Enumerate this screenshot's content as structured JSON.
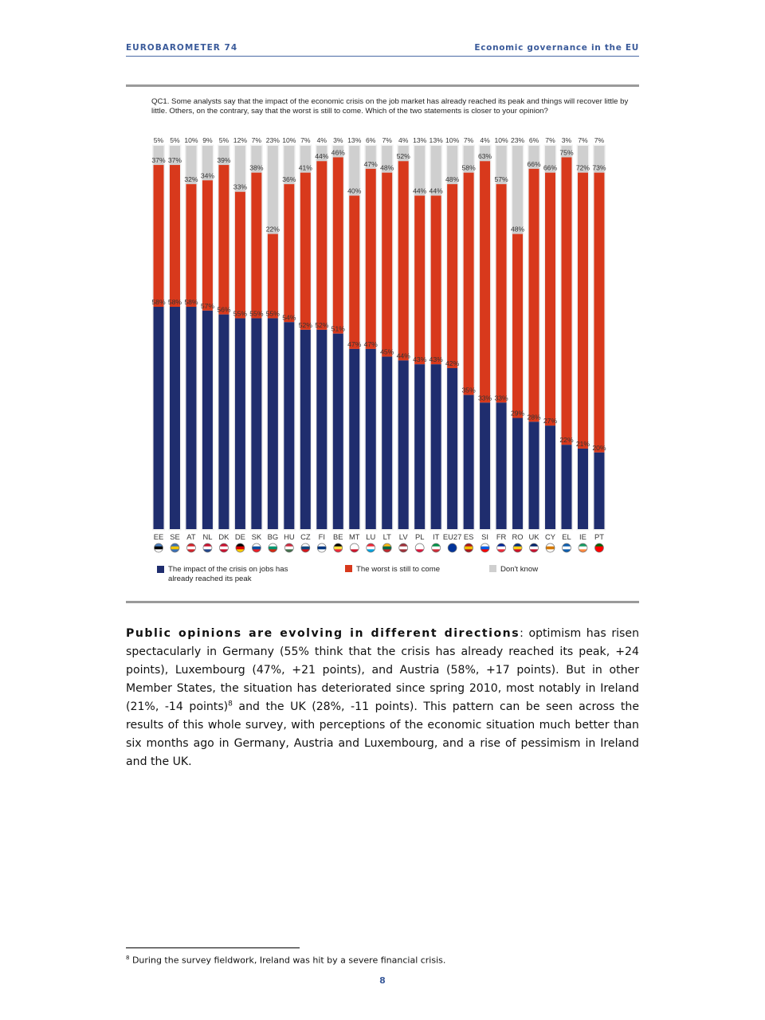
{
  "header": {
    "left": "EUROBAROMETER 74",
    "right": "Economic governance in the EU"
  },
  "question": "QC1. Some analysts say that the impact of the economic crisis on the job market has already reached its peak and things will recover little by little. Others, on the contrary, say that the worst is still to come. Which of the two statements is closer to your opinion?",
  "colors": {
    "peak": "#1f2d6e",
    "worst": "#d8391c",
    "dontknow": "#cfcfcf"
  },
  "chart_data": {
    "type": "bar",
    "stacked": true,
    "categories": [
      "EE",
      "SE",
      "AT",
      "NL",
      "DK",
      "DE",
      "SK",
      "BG",
      "HU",
      "CZ",
      "FI",
      "BE",
      "MT",
      "LU",
      "LT",
      "LV",
      "PL",
      "IT",
      "EU27",
      "ES",
      "SI",
      "FR",
      "RO",
      "UK",
      "CY",
      "EL",
      "IE",
      "PT"
    ],
    "series": [
      {
        "name": "The impact of the crisis on jobs has already reached its peak",
        "values": [
          58,
          58,
          58,
          57,
          56,
          55,
          55,
          55,
          54,
          52,
          52,
          51,
          47,
          47,
          45,
          44,
          43,
          43,
          42,
          35,
          33,
          33,
          29,
          28,
          27,
          22,
          21,
          20
        ]
      },
      {
        "name": "The worst is still to come",
        "values": [
          37,
          37,
          32,
          34,
          39,
          33,
          38,
          22,
          36,
          41,
          44,
          46,
          40,
          47,
          48,
          52,
          44,
          44,
          48,
          58,
          63,
          57,
          48,
          66,
          66,
          75,
          72,
          73
        ]
      },
      {
        "name": "Don't know",
        "values": [
          5,
          5,
          10,
          9,
          5,
          12,
          7,
          23,
          10,
          7,
          4,
          3,
          13,
          6,
          7,
          4,
          13,
          13,
          10,
          7,
          4,
          10,
          23,
          6,
          7,
          3,
          7,
          7
        ]
      }
    ],
    "ylim": [
      0,
      100
    ],
    "value_labels": "percent",
    "legend_position": "bottom"
  },
  "legend": [
    {
      "label": "The impact of the crisis on jobs has already reached its peak",
      "color": "#1f2d6e"
    },
    {
      "label": "The worst is still to come",
      "color": "#d8391c"
    },
    {
      "label": "Don't know",
      "color": "#cfcfcf"
    }
  ],
  "flags": [
    [
      "#4a7fc1",
      "#000000",
      "#ffffff"
    ],
    [
      "#3a6fb5",
      "#f2c500",
      "#3a6fb5"
    ],
    [
      "#d2232a",
      "#ffffff",
      "#d2232a"
    ],
    [
      "#c8102e",
      "#ffffff",
      "#21468b"
    ],
    [
      "#c8102e",
      "#ffffff",
      "#c8102e"
    ],
    [
      "#000000",
      "#dd0000",
      "#ffcc00"
    ],
    [
      "#ffffff",
      "#0b4ea2",
      "#ee1c25"
    ],
    [
      "#ffffff",
      "#00966e",
      "#d62612"
    ],
    [
      "#cd2a3e",
      "#ffffff",
      "#436f4d"
    ],
    [
      "#ffffff",
      "#11457e",
      "#d7141a"
    ],
    [
      "#ffffff",
      "#003580",
      "#ffffff"
    ],
    [
      "#000000",
      "#fae042",
      "#ed2939"
    ],
    [
      "#ffffff",
      "#ffffff",
      "#cf142b"
    ],
    [
      "#ed2939",
      "#ffffff",
      "#00a1de"
    ],
    [
      "#fdb913",
      "#006a44",
      "#c1272d"
    ],
    [
      "#9e3039",
      "#ffffff",
      "#9e3039"
    ],
    [
      "#ffffff",
      "#ffffff",
      "#dc143c"
    ],
    [
      "#009246",
      "#ffffff",
      "#ce2b37"
    ],
    [
      "#003399",
      "#003399",
      "#003399"
    ],
    [
      "#aa151b",
      "#f1bf00",
      "#aa151b"
    ],
    [
      "#ffffff",
      "#005ce6",
      "#ff0000"
    ],
    [
      "#002395",
      "#ffffff",
      "#ed2939"
    ],
    [
      "#002b7f",
      "#fcd116",
      "#ce1126"
    ],
    [
      "#012169",
      "#ffffff",
      "#c8102e"
    ],
    [
      "#ffffff",
      "#d57800",
      "#ffffff"
    ],
    [
      "#0d5eaf",
      "#ffffff",
      "#0d5eaf"
    ],
    [
      "#169b62",
      "#ffffff",
      "#ff883e"
    ],
    [
      "#006600",
      "#ff0000",
      "#ff0000"
    ]
  ],
  "body": {
    "lead": "Public opinions are evolving in different directions",
    "text1": ": optimism has risen spectacularly in Germany (55% think that the crisis has already reached its peak, +24 points), Luxembourg (47%, +21 points), and Austria (58%, +17 points). But in other Member States, the situation has deteriorated since spring 2010, most notably in Ireland (21%, -14 points)",
    "footnote_ref": "8",
    "text2": " and the UK (28%, -11 points). This pattern can be seen across the results of this whole survey, with perceptions of the economic situation much better than six months ago in Germany, Austria and Luxembourg, and a rise of pessimism in Ireland and the UK."
  },
  "footnote": {
    "num": "8",
    "text": " During the survey fieldwork, Ireland was hit by a severe financial crisis."
  },
  "page_number": "8"
}
